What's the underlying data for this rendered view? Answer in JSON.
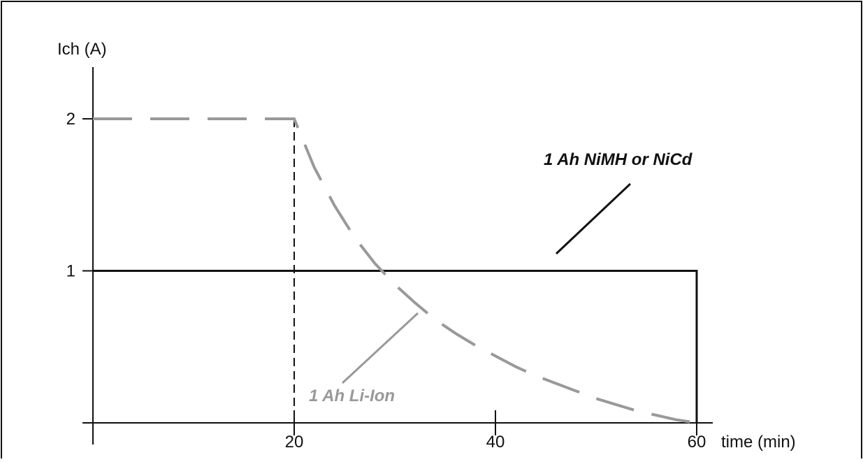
{
  "chart_data": {
    "type": "line",
    "title": "",
    "ylabel": "Ich (A)",
    "xlabel": "time (min)",
    "xlim": [
      0,
      60
    ],
    "ylim": [
      0,
      2
    ],
    "x_ticks": [
      20,
      40,
      60
    ],
    "y_ticks": [
      1,
      2
    ],
    "grid": false,
    "series": [
      {
        "name": "1 Ah NiMH or NiCd",
        "style": "solid",
        "color": "#111111",
        "x": [
          0,
          60,
          60
        ],
        "y": [
          1,
          1,
          0
        ]
      },
      {
        "name": "1 Ah Li-Ion",
        "style": "dashed",
        "color": "#999999",
        "x": [
          0,
          20,
          22,
          24,
          26,
          28,
          30,
          32,
          34,
          36,
          38,
          40,
          42,
          44,
          46,
          48,
          50,
          52,
          54,
          56,
          58,
          60
        ],
        "y": [
          2,
          2,
          1.68,
          1.43,
          1.22,
          1.05,
          0.91,
          0.79,
          0.68,
          0.59,
          0.51,
          0.44,
          0.37,
          0.31,
          0.26,
          0.21,
          0.16,
          0.12,
          0.08,
          0.05,
          0.02,
          0
        ]
      }
    ],
    "reference_line": {
      "x": 20,
      "y_from": 0,
      "y_to": 2,
      "style": "dashed"
    },
    "annotations": [
      {
        "text": "1 Ah NiMH or NiCd",
        "color": "#111111"
      },
      {
        "text": "1 Ah Li-Ion",
        "color": "#999999"
      }
    ]
  }
}
